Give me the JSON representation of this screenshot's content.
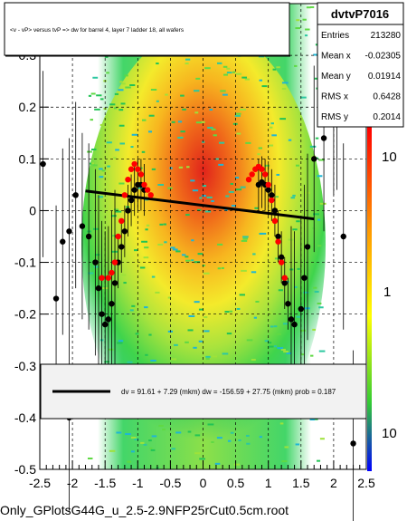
{
  "chart_data": {
    "type": "scatter",
    "title": "<v - vP>       versus  tvP =>  dw for barrel 4, layer 7 ladder 18, all wafers",
    "xlabel": "",
    "ylabel": "",
    "xlim": [
      -2.5,
      2.5
    ],
    "ylim": [
      -0.5,
      0.4
    ],
    "x_ticks": [
      "-2.5",
      "-2",
      "-1.5",
      "-1",
      "-0.5",
      "0",
      "0.5",
      "1",
      "1.5",
      "2",
      "2.5"
    ],
    "y_ticks": [
      "-0.5",
      "-0.4",
      "-0.3",
      "-0.2",
      "-0.1",
      "0",
      "0.1",
      "0.2",
      "0.3"
    ],
    "z_ticks": [
      "10",
      "1",
      "10"
    ],
    "stats": {
      "name": "dvtvP7016",
      "rows": [
        {
          "label": "Entries",
          "value": "213280"
        },
        {
          "label": "Mean x",
          "value": "-0.02305"
        },
        {
          "label": "Mean y",
          "value": "0.01914"
        },
        {
          "label": "RMS x",
          "value": "0.6428"
        },
        {
          "label": "RMS y",
          "value": "0.2014"
        }
      ]
    },
    "fit_text": "dv =   91.61 +  7.29 (mkm) dw = -156.59 + 27.75 (mkm) prob = 0.187",
    "footer": "Only_GPlotsG44G_u_2.5-2.9NFP25rCut0.5cm.root",
    "fit_line": {
      "x": [
        -1.8,
        1.7
      ],
      "y": [
        0.038,
        -0.016
      ]
    },
    "series": [
      {
        "name": "",
        "color": "#000000",
        "points": [
          [
            -2.45,
            0.09
          ],
          [
            -2.25,
            -0.17
          ],
          [
            -2.15,
            -0.06
          ],
          [
            -2.05,
            -0.04
          ],
          [
            -1.95,
            0.03
          ],
          [
            -1.85,
            -0.03
          ],
          [
            -1.75,
            -0.05
          ],
          [
            -1.65,
            -0.1
          ],
          [
            -1.6,
            -0.15
          ],
          [
            -1.55,
            -0.2
          ],
          [
            -1.5,
            -0.22
          ],
          [
            -1.45,
            -0.21
          ],
          [
            -1.4,
            -0.18
          ],
          [
            -1.35,
            -0.14
          ],
          [
            -1.3,
            -0.1
          ],
          [
            -1.25,
            -0.07
          ],
          [
            -1.2,
            -0.04
          ],
          [
            -1.15,
            0.0
          ],
          [
            -1.1,
            0.02
          ],
          [
            -1.05,
            0.04
          ],
          [
            -1.0,
            0.05
          ],
          [
            -0.95,
            0.05
          ],
          [
            -0.9,
            0.04
          ],
          [
            0.85,
            0.05
          ],
          [
            0.9,
            0.055
          ],
          [
            0.95,
            0.05
          ],
          [
            1.0,
            0.04
          ],
          [
            1.05,
            0.03
          ],
          [
            1.1,
            0.0
          ],
          [
            1.15,
            -0.05
          ],
          [
            1.2,
            -0.09
          ],
          [
            1.25,
            -0.14
          ],
          [
            1.3,
            -0.18
          ],
          [
            1.35,
            -0.21
          ],
          [
            1.4,
            -0.22
          ],
          [
            1.5,
            -0.19
          ],
          [
            1.55,
            -0.13
          ],
          [
            1.6,
            -0.07
          ],
          [
            1.7,
            0.1
          ],
          [
            1.85,
            0.14
          ],
          [
            2.0,
            0.21
          ],
          [
            2.05,
            0.22
          ],
          [
            2.15,
            -0.05
          ],
          [
            2.3,
            -0.45
          ],
          [
            -2.05,
            -0.4
          ]
        ]
      },
      {
        "name": "",
        "color": "#ff0000",
        "points": [
          [
            -1.55,
            -0.13
          ],
          [
            -1.45,
            -0.13
          ],
          [
            -1.4,
            -0.12
          ],
          [
            -1.35,
            -0.1
          ],
          [
            -1.3,
            -0.05
          ],
          [
            -1.25,
            -0.02
          ],
          [
            -1.2,
            0.03
          ],
          [
            -1.15,
            0.06
          ],
          [
            -1.1,
            0.08
          ],
          [
            -1.05,
            0.09
          ],
          [
            -1.0,
            0.08
          ],
          [
            -0.95,
            0.07
          ],
          [
            -0.9,
            0.05
          ],
          [
            -0.85,
            0.04
          ],
          [
            -0.8,
            0.03
          ],
          [
            0.7,
            0.06
          ],
          [
            0.75,
            0.07
          ],
          [
            0.8,
            0.08
          ],
          [
            0.85,
            0.085
          ],
          [
            0.9,
            0.08
          ],
          [
            0.95,
            0.07
          ],
          [
            1.0,
            0.05
          ],
          [
            1.05,
            0.02
          ],
          [
            1.1,
            -0.02
          ],
          [
            1.15,
            -0.06
          ],
          [
            1.2,
            -0.1
          ],
          [
            1.25,
            -0.13
          ]
        ]
      }
    ]
  }
}
